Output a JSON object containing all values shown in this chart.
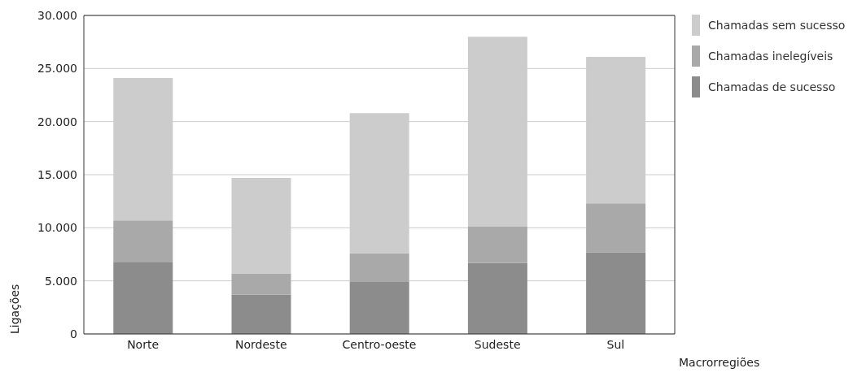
{
  "chart_data": {
    "type": "bar",
    "stacked": true,
    "xlabel": "Macrorregiões",
    "ylabel": "Ligações",
    "categories": [
      "Norte",
      "Nordeste",
      "Centro-oeste",
      "Sudeste",
      "Sul"
    ],
    "series": [
      {
        "name": "Chamadas de sucesso",
        "color": "#8c8c8c",
        "values": [
          6800,
          3700,
          4900,
          6700,
          7700
        ]
      },
      {
        "name": "Chamadas inelegíveis",
        "color": "#a9a9a9",
        "values": [
          3900,
          2000,
          2700,
          3400,
          4600
        ]
      },
      {
        "name": "Chamadas sem sucesso",
        "color": "#cccccc",
        "values": [
          13400,
          9000,
          13200,
          17900,
          13800
        ]
      }
    ],
    "ylim": [
      0,
      30000
    ],
    "yticks": [
      0,
      {
        "value": 5000,
        "label": "5.000"
      },
      {
        "value": 10000,
        "label": "10.000"
      },
      {
        "value": 15000,
        "label": "15.000"
      },
      {
        "value": 20000,
        "label": "20.000"
      },
      {
        "value": 25000,
        "label": "25.000"
      },
      {
        "value": 30000,
        "label": "30.000"
      }
    ],
    "grid": "y",
    "legend": "top right"
  }
}
